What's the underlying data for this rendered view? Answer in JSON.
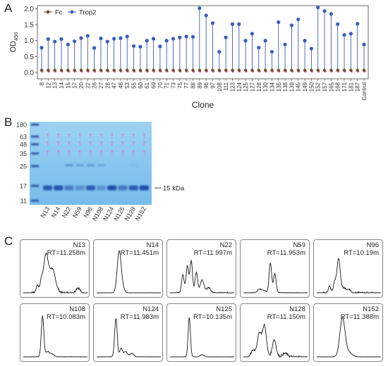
{
  "panel_labels": {
    "a": "A",
    "b": "B",
    "c": "C"
  },
  "chart_data": [
    {
      "type": "scatter",
      "subtype": "lollipop",
      "panel": "A",
      "ylabel": "OD450",
      "xlabel": "Clone",
      "ylim": [
        -0.2,
        2.1
      ],
      "yticks": [
        "0.0",
        "0.5",
        "1.0",
        "1.5",
        "2.0"
      ],
      "legend_placement": "top-left",
      "categories": [
        "8",
        "12",
        "13",
        "14",
        "15",
        "17",
        "20",
        "22",
        "26",
        "27",
        "28",
        "47",
        "48",
        "53",
        "55",
        "60",
        "61",
        "69",
        "70",
        "71",
        "73",
        "75",
        "77",
        "88",
        "89",
        "96",
        "97",
        "108",
        "111",
        "123",
        "124",
        "125",
        "127",
        "128",
        "130",
        "134",
        "135",
        "138",
        "139",
        "145",
        "149",
        "150",
        "152",
        "157",
        "165",
        "168",
        "171",
        "181",
        "187",
        "Control"
      ],
      "series": [
        {
          "name": "Fc",
          "color": "#7a4a2a",
          "values": [
            0.07,
            0.07,
            0.07,
            0.07,
            0.07,
            0.07,
            0.07,
            0.07,
            0.07,
            0.07,
            0.07,
            0.07,
            0.07,
            0.07,
            0.07,
            0.07,
            0.07,
            0.07,
            0.07,
            0.07,
            0.07,
            0.07,
            0.07,
            0.07,
            0.07,
            0.07,
            0.07,
            0.07,
            0.07,
            0.07,
            0.07,
            0.07,
            0.07,
            0.07,
            0.07,
            0.07,
            0.07,
            0.07,
            0.07,
            0.07,
            0.07,
            0.07,
            0.07,
            0.07,
            0.07,
            0.07,
            0.07,
            0.07,
            0.07,
            0.07
          ]
        },
        {
          "name": "Trop2",
          "color": "#3a5bc0",
          "values": [
            0.78,
            1.05,
            0.97,
            1.05,
            0.88,
            0.98,
            1.08,
            1.15,
            0.77,
            1.07,
            0.97,
            1.06,
            1.08,
            1.13,
            0.83,
            0.81,
            1.0,
            1.06,
            0.82,
            1.0,
            1.06,
            1.1,
            1.13,
            1.12,
            2.02,
            1.79,
            1.55,
            0.65,
            1.1,
            1.52,
            1.52,
            1.0,
            1.22,
            0.78,
            1.0,
            0.65,
            1.58,
            0.88,
            1.48,
            1.67,
            1.0,
            0.75,
            2.04,
            1.93,
            1.84,
            1.52,
            1.18,
            1.22,
            1.53,
            0.88
          ]
        }
      ]
    },
    {
      "type": "other",
      "subtype": "sds-page-gel",
      "panel": "B",
      "marker_kda": [
        "180",
        "63",
        "48",
        "35",
        "25",
        "17",
        "11"
      ],
      "lanes": [
        "N13",
        "N14",
        "N22",
        "N59",
        "N96",
        "N108",
        "N124",
        "N125",
        "N128",
        "N152"
      ],
      "band_label": "15 kDa",
      "band_intensity": [
        0.85,
        0.9,
        0.55,
        0.4,
        0.8,
        0.35,
        0.95,
        0.6,
        0.8,
        0.95
      ],
      "upper_band_intensity": [
        0.0,
        0.0,
        0.4,
        0.3,
        0.35,
        0.25,
        0.0,
        0.0,
        0.1,
        0.0
      ]
    },
    {
      "type": "line",
      "subtype": "chromatograms",
      "panel": "C",
      "panels": [
        {
          "name": "N13",
          "rt": "RT=11.258m",
          "peaks": [
            [
              0.35,
              0.85,
              0.035
            ],
            [
              0.45,
              0.55,
              0.05
            ],
            [
              0.28,
              0.25,
              0.02
            ],
            [
              0.22,
              0.18,
              0.02
            ],
            [
              0.85,
              0.12,
              0.03
            ]
          ],
          "noise": 0.05
        },
        {
          "name": "N14",
          "rt": "RT=11.451m",
          "peaks": [
            [
              0.35,
              0.95,
              0.03
            ],
            [
              0.4,
              0.12,
              0.03
            ]
          ],
          "noise": 0.01
        },
        {
          "name": "N22",
          "rt": "RT=11.997m",
          "peaks": [
            [
              0.2,
              0.42,
              0.02
            ],
            [
              0.27,
              0.62,
              0.02
            ],
            [
              0.33,
              0.75,
              0.02
            ],
            [
              0.41,
              0.48,
              0.02
            ],
            [
              0.5,
              0.3,
              0.03
            ],
            [
              0.6,
              0.12,
              0.03
            ]
          ],
          "noise": 0.03
        },
        {
          "name": "N59",
          "rt": "RT=11.953m",
          "peaks": [
            [
              0.42,
              0.7,
              0.02
            ],
            [
              0.49,
              0.45,
              0.02
            ],
            [
              0.25,
              0.08,
              0.03
            ],
            [
              0.32,
              0.06,
              0.03
            ]
          ],
          "noise": 0.02
        },
        {
          "name": "N96",
          "rt": "RT=10.19m",
          "peaks": [
            [
              0.34,
              0.8,
              0.025
            ],
            [
              0.28,
              0.25,
              0.02
            ],
            [
              0.2,
              0.15,
              0.02
            ],
            [
              0.42,
              0.12,
              0.03
            ],
            [
              0.5,
              0.08,
              0.03
            ]
          ],
          "noise": 0.04
        },
        {
          "name": "N108",
          "rt": "RT=10.083m",
          "peaks": [
            [
              0.3,
              0.95,
              0.02
            ],
            [
              0.38,
              0.12,
              0.03
            ],
            [
              0.45,
              0.06,
              0.03
            ]
          ],
          "noise": 0.015
        },
        {
          "name": "N124",
          "rt": "RT=11.983m",
          "peaks": [
            [
              0.3,
              0.9,
              0.02
            ],
            [
              0.38,
              0.2,
              0.02
            ],
            [
              0.45,
              0.12,
              0.03
            ],
            [
              0.55,
              0.08,
              0.03
            ]
          ],
          "noise": 0.015
        },
        {
          "name": "N125",
          "rt": "RT=10.135m",
          "peaks": [
            [
              0.3,
              0.92,
              0.018
            ],
            [
              0.5,
              0.05,
              0.03
            ]
          ],
          "noise": 0.01
        },
        {
          "name": "N128",
          "rt": "RT=11.150m",
          "peaks": [
            [
              0.25,
              0.55,
              0.035
            ],
            [
              0.33,
              0.7,
              0.03
            ],
            [
              0.48,
              0.4,
              0.03
            ],
            [
              0.15,
              0.15,
              0.03
            ],
            [
              0.65,
              0.08,
              0.04
            ]
          ],
          "noise": 0.05
        },
        {
          "name": "N152",
          "rt": "RT=11.388m",
          "peaks": [
            [
              0.4,
              0.9,
              0.04
            ],
            [
              0.5,
              0.1,
              0.05
            ]
          ],
          "noise": 0.01
        }
      ]
    }
  ]
}
